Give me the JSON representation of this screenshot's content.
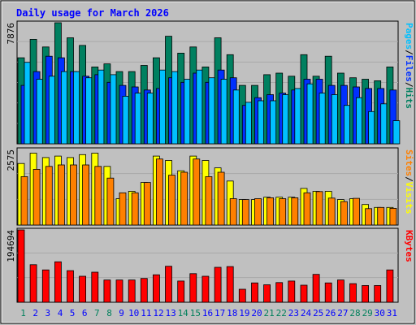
{
  "chart_data": [
    {
      "type": "bar",
      "title": "Daily usage for March 2026",
      "panel": "hits-files-pages",
      "ylabel_parts": [
        "Pages",
        "/",
        "Files",
        "/",
        "Hits"
      ],
      "ymax_label": "7876",
      "ylim": [
        0,
        7876
      ],
      "grid": true,
      "categories": [
        "1",
        "2",
        "3",
        "4",
        "5",
        "6",
        "7",
        "8",
        "9",
        "10",
        "11",
        "12",
        "13",
        "14",
        "15",
        "16",
        "17",
        "18",
        "19",
        "20",
        "21",
        "22",
        "23",
        "24",
        "25",
        "26",
        "27",
        "28",
        "29",
        "30",
        "31"
      ],
      "weekend_days": [
        "1",
        "7",
        "8",
        "14",
        "15",
        "21",
        "22",
        "28",
        "29"
      ],
      "series": [
        {
          "name": "Hits",
          "color": "#008060",
          "values": [
            5600,
            6800,
            6300,
            7876,
            6900,
            6400,
            5000,
            5200,
            4700,
            4700,
            5100,
            5600,
            7000,
            5900,
            6300,
            5000,
            6900,
            5800,
            3800,
            3800,
            4500,
            4600,
            4400,
            5800,
            4400,
            5700,
            4600,
            4300,
            4200,
            4100,
            5000
          ]
        },
        {
          "name": "Files",
          "color": "#0030ff",
          "values": [
            3800,
            4700,
            5700,
            5600,
            4700,
            4400,
            4500,
            4000,
            3800,
            3700,
            3500,
            3600,
            4300,
            4000,
            4600,
            4000,
            4800,
            4300,
            2500,
            3000,
            3200,
            3300,
            3500,
            4200,
            4200,
            3800,
            3800,
            3700,
            3600,
            3600,
            3500
          ]
        },
        {
          "name": "Pages",
          "color": "#00c0ff",
          "values": [
            5300,
            4200,
            4400,
            4700,
            4700,
            4300,
            4800,
            4500,
            3100,
            3300,
            3300,
            4800,
            4700,
            4200,
            4800,
            4300,
            4200,
            3500,
            2700,
            2800,
            2800,
            3200,
            3600,
            3900,
            3300,
            3200,
            2500,
            3000,
            2100,
            2600,
            1500
          ]
        }
      ]
    },
    {
      "type": "bar",
      "panel": "visits-sites",
      "ylabel_parts": [
        "Sites",
        "/",
        "Visits"
      ],
      "ymax_label": "2575",
      "ylim": [
        0,
        2575
      ],
      "grid": true,
      "categories": [
        "1",
        "2",
        "3",
        "4",
        "5",
        "6",
        "7",
        "8",
        "9",
        "10",
        "11",
        "12",
        "13",
        "14",
        "15",
        "16",
        "17",
        "18",
        "19",
        "20",
        "21",
        "22",
        "23",
        "24",
        "25",
        "26",
        "27",
        "28",
        "29",
        "30",
        "31"
      ],
      "series": [
        {
          "name": "Visits",
          "color": "#ffff00",
          "values": [
            2100,
            2450,
            2300,
            2350,
            2300,
            2400,
            2450,
            2000,
            900,
            1150,
            1450,
            2350,
            2200,
            1850,
            2350,
            2200,
            1950,
            1500,
            870,
            870,
            950,
            950,
            950,
            1250,
            1150,
            1150,
            870,
            900,
            700,
            600,
            600
          ]
        },
        {
          "name": "Sites",
          "color": "#ff8000",
          "values": [
            1650,
            1900,
            2000,
            2050,
            2050,
            2050,
            2000,
            1600,
            1100,
            1100,
            1450,
            2250,
            1700,
            1800,
            2250,
            1650,
            1800,
            900,
            870,
            900,
            930,
            900,
            930,
            1100,
            1140,
            920,
            800,
            910,
            560,
            600,
            570
          ]
        }
      ]
    },
    {
      "type": "bar",
      "panel": "kbytes",
      "ylabel": "KBytes",
      "ymax_label": "194694",
      "ylim": [
        0,
        194694
      ],
      "grid": true,
      "categories": [
        "1",
        "2",
        "3",
        "4",
        "5",
        "6",
        "7",
        "8",
        "9",
        "10",
        "11",
        "12",
        "13",
        "14",
        "15",
        "16",
        "17",
        "18",
        "19",
        "20",
        "21",
        "22",
        "23",
        "24",
        "25",
        "26",
        "27",
        "28",
        "29",
        "30",
        "31"
      ],
      "series": [
        {
          "name": "KBytes",
          "color": "#ff0000",
          "values": [
            194694,
            101000,
            87000,
            109000,
            85000,
            70000,
            81000,
            60000,
            60000,
            60000,
            64000,
            74000,
            97000,
            57000,
            77000,
            70000,
            94000,
            96000,
            35000,
            52000,
            47000,
            53000,
            57000,
            46000,
            75000,
            52000,
            60000,
            50000,
            45000,
            45000,
            87000
          ]
        }
      ]
    }
  ],
  "colors": {
    "background": "#c0c0c0",
    "plot": "#c0c0c0",
    "title": "#0000ff",
    "axis_text": "#000000",
    "weekday_label": "#0000ff",
    "weekend_label": "#00805c",
    "grid": "#a8a8a8"
  }
}
